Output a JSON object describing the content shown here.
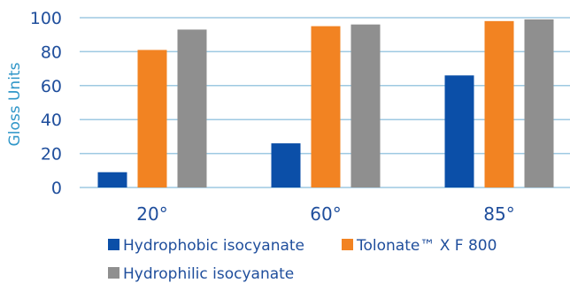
{
  "chart_data": {
    "type": "bar",
    "title": "",
    "xlabel": "",
    "ylabel": "Gloss Units",
    "ylim": [
      0,
      100
    ],
    "yticks": [
      "0",
      "20",
      "40",
      "60",
      "80",
      "100"
    ],
    "grid": true,
    "legend_position": "bottom",
    "categories": [
      "20°",
      "60°",
      "85°"
    ],
    "series": [
      {
        "name": "Hydrophobic isocyanate",
        "color": "#0b4fa8",
        "values": [
          9,
          26,
          66
        ]
      },
      {
        "name": "Tolonate™ X F 800",
        "color": "#f28322",
        "values": [
          81,
          95,
          98
        ]
      },
      {
        "name": "Hydrophilic isocyanate",
        "color": "#8f8f8f",
        "values": [
          93,
          96,
          99
        ]
      }
    ]
  }
}
